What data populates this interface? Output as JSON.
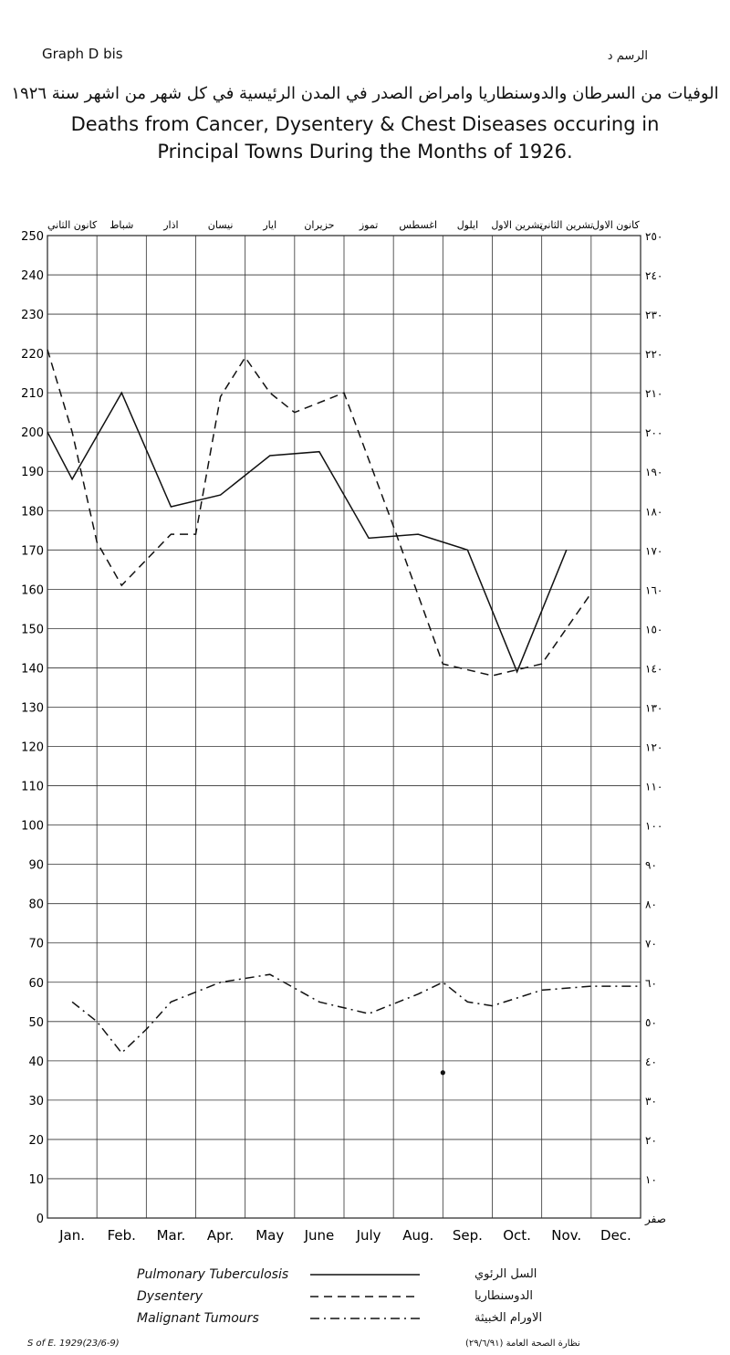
{
  "header": {
    "graph_label": "Graph D bis",
    "graph_label_ar": "الرسم د",
    "title_ar": "الوفيات من السرطان والدوسنطاريا وامراض الصدر في المدن الرئيسية في كل شهر من اشهر سنة ١٩٢٦",
    "title_en_line1": "Deaths from Cancer, Dysentery & Chest Diseases occuring in",
    "title_en_line2": "Principal Towns During the Months of 1926."
  },
  "chart_data": {
    "type": "line",
    "categories": [
      "Jan.",
      "Feb.",
      "Mar.",
      "Apr.",
      "May",
      "June",
      "July",
      "Aug.",
      "Sep.",
      "Oct.",
      "Nov.",
      "Dec."
    ],
    "months_ar": [
      "كانون الثاني",
      "شباط",
      "اذار",
      "نيسان",
      "ايار",
      "حزيران",
      "تموز",
      "اغسطس",
      "ايلول",
      "تشرين الاول",
      "تشرين الثاني",
      "كانون الاول"
    ],
    "y_ticks": [
      "0",
      "10",
      "20",
      "30",
      "40",
      "50",
      "60",
      "70",
      "80",
      "90",
      "100",
      "110",
      "120",
      "130",
      "140",
      "150",
      "160",
      "170",
      "180",
      "190",
      "200",
      "210",
      "220",
      "230",
      "240",
      "250"
    ],
    "y_ticks_ar": [
      "صفر",
      "١٠",
      "٢٠",
      "٣٠",
      "٤٠",
      "٥٠",
      "٦٠",
      "٧٠",
      "٨٠",
      "٩٠",
      "١٠٠",
      "١١٠",
      "١٢٠",
      "١٣٠",
      "١٤٠",
      "١٥٠",
      "١٦٠",
      "١٧٠",
      "١٨٠",
      "١٩٠",
      "٢٠٠",
      "٢١٠",
      "٢٢٠",
      "٢٣٠",
      "٢٤٠",
      "٢٥٠"
    ],
    "ylim": [
      0,
      250
    ],
    "grid": true,
    "series": [
      {
        "name": "Pulmonary Tuberculosis",
        "name_ar": "السل الرئوي",
        "style": "solid",
        "points": [
          [
            0,
            200
          ],
          [
            0.5,
            188
          ],
          [
            1.5,
            210
          ],
          [
            2.5,
            181
          ],
          [
            3.5,
            184
          ],
          [
            4.5,
            194
          ],
          [
            5.5,
            195
          ],
          [
            6.5,
            173
          ],
          [
            7.5,
            174
          ],
          [
            8.5,
            170
          ],
          [
            9.5,
            139
          ],
          [
            10.5,
            170
          ]
        ]
      },
      {
        "name": "Dysentery",
        "name_ar": "الدوسنطاريا",
        "style": "dashed",
        "points": [
          [
            0,
            221
          ],
          [
            0.5,
            200
          ],
          [
            1,
            172
          ],
          [
            1.5,
            161
          ],
          [
            2.5,
            174
          ],
          [
            3,
            174
          ],
          [
            3.5,
            209
          ],
          [
            4,
            219
          ],
          [
            4.5,
            210
          ],
          [
            5,
            205
          ],
          [
            6,
            210
          ],
          [
            7,
            176
          ],
          [
            8,
            141
          ],
          [
            9,
            138
          ],
          [
            10,
            141
          ],
          [
            11,
            159
          ]
        ]
      },
      {
        "name": "Malignant Tumours",
        "name_ar": "الاورام الخبيثة",
        "style": "dashdot",
        "points": [
          [
            0.5,
            55
          ],
          [
            1,
            50
          ],
          [
            1.5,
            42
          ],
          [
            2,
            48
          ],
          [
            2.5,
            55
          ],
          [
            3.5,
            60
          ],
          [
            4.5,
            62
          ],
          [
            5.5,
            55
          ],
          [
            6.5,
            52
          ],
          [
            7.5,
            57
          ],
          [
            8,
            60
          ],
          [
            8.5,
            55
          ],
          [
            9,
            54
          ],
          [
            10,
            58
          ],
          [
            11,
            59
          ],
          [
            12,
            59
          ]
        ],
        "isolated_point": [
          8,
          37
        ]
      }
    ]
  },
  "legend_title_ar": "الرسم",
  "footer": {
    "left": "S of E. 1929(23/6-9)",
    "right": "(٢٩/٦/٩١) نظارة الصحة العامة"
  }
}
